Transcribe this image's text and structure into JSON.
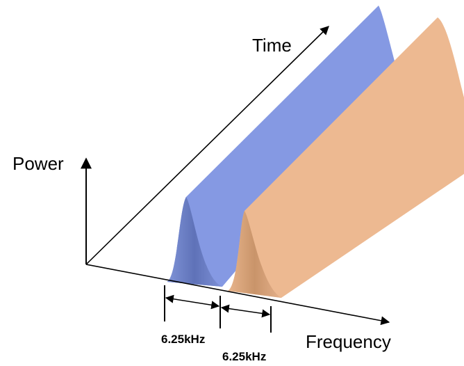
{
  "axes": {
    "time": "Time",
    "power": "Power",
    "frequency": "Frequency"
  },
  "spacing": {
    "first": "6.25kHz",
    "second": "6.25kHz"
  }
}
